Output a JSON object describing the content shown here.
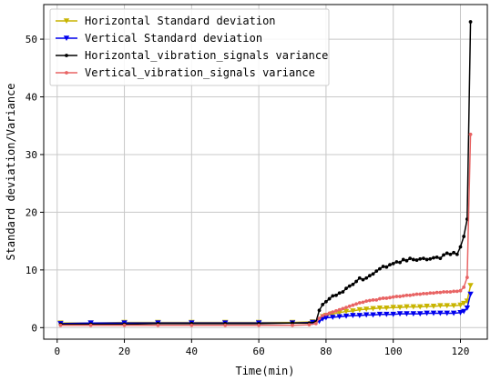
{
  "chart_data": {
    "type": "line",
    "xlabel": "Time(min)",
    "ylabel": "Standard deviation/Variance",
    "xlim": [
      -4,
      128
    ],
    "ylim": [
      -2,
      56
    ],
    "xticks": [
      0,
      20,
      40,
      60,
      80,
      100,
      120
    ],
    "yticks": [
      0,
      10,
      20,
      30,
      40,
      50
    ],
    "grid": true,
    "legend_position": "top-left",
    "series": [
      {
        "name": "Horizontal Standard deviation",
        "color": "#c8b400",
        "marker": "triangle-down",
        "x": [
          1,
          10,
          20,
          30,
          40,
          50,
          60,
          70,
          76,
          78,
          79,
          80,
          82,
          84,
          86,
          88,
          90,
          92,
          94,
          96,
          98,
          100,
          102,
          104,
          106,
          108,
          110,
          112,
          114,
          116,
          118,
          120,
          121,
          122,
          123
        ],
        "y": [
          0.8,
          0.8,
          0.9,
          0.9,
          0.9,
          0.9,
          0.9,
          0.9,
          1.0,
          1.2,
          1.9,
          2.1,
          2.4,
          2.6,
          2.8,
          2.9,
          3.1,
          3.2,
          3.3,
          3.4,
          3.4,
          3.5,
          3.5,
          3.6,
          3.6,
          3.6,
          3.7,
          3.7,
          3.8,
          3.8,
          3.8,
          3.9,
          4.2,
          4.6,
          7.3
        ]
      },
      {
        "name": "Vertical Standard deviation",
        "color": "#0000ee",
        "marker": "triangle-down",
        "x": [
          1,
          10,
          20,
          30,
          40,
          50,
          60,
          70,
          76,
          78,
          79,
          80,
          82,
          84,
          86,
          88,
          90,
          92,
          94,
          96,
          98,
          100,
          102,
          104,
          106,
          108,
          110,
          112,
          114,
          116,
          118,
          120,
          121,
          122,
          123
        ],
        "y": [
          0.7,
          0.8,
          0.8,
          0.8,
          0.8,
          0.8,
          0.8,
          0.8,
          0.9,
          1.1,
          1.5,
          1.7,
          1.8,
          1.9,
          2.0,
          2.1,
          2.1,
          2.2,
          2.2,
          2.3,
          2.3,
          2.3,
          2.4,
          2.4,
          2.4,
          2.4,
          2.5,
          2.5,
          2.5,
          2.5,
          2.5,
          2.6,
          2.8,
          3.4,
          5.8
        ]
      },
      {
        "name": "Horizontal_vibration_signals variance",
        "color": "#000000",
        "marker": "dot",
        "x": [
          1,
          10,
          20,
          30,
          40,
          50,
          60,
          70,
          75,
          77,
          78,
          79,
          80,
          81,
          82,
          83,
          84,
          85,
          86,
          87,
          88,
          89,
          90,
          91,
          92,
          93,
          94,
          95,
          96,
          97,
          98,
          99,
          100,
          101,
          102,
          103,
          104,
          105,
          106,
          107,
          108,
          109,
          110,
          111,
          112,
          113,
          114,
          115,
          116,
          117,
          118,
          119,
          120,
          121,
          122,
          123
        ],
        "y": [
          0.6,
          0.6,
          0.6,
          0.7,
          0.7,
          0.7,
          0.7,
          0.8,
          0.8,
          1.0,
          3.0,
          4.0,
          4.5,
          5.0,
          5.5,
          5.6,
          6.0,
          6.2,
          6.8,
          7.2,
          7.5,
          8.0,
          8.6,
          8.3,
          8.6,
          9.0,
          9.3,
          9.8,
          10.2,
          10.6,
          10.5,
          10.9,
          11.1,
          11.4,
          11.3,
          11.8,
          11.6,
          12.0,
          11.8,
          11.7,
          11.9,
          12.0,
          11.8,
          11.9,
          12.1,
          12.2,
          12.0,
          12.6,
          12.9,
          12.7,
          13.0,
          12.7,
          14.0,
          15.8,
          18.8,
          53.0
        ]
      },
      {
        "name": "Vertical_vibration_signals variance",
        "color": "#e86464",
        "marker": "dot",
        "x": [
          1,
          10,
          20,
          30,
          40,
          50,
          60,
          70,
          75,
          77,
          78,
          79,
          80,
          81,
          82,
          83,
          84,
          85,
          86,
          87,
          88,
          89,
          90,
          91,
          92,
          93,
          94,
          95,
          96,
          97,
          98,
          99,
          100,
          101,
          102,
          103,
          104,
          105,
          106,
          107,
          108,
          109,
          110,
          111,
          112,
          113,
          114,
          115,
          116,
          117,
          118,
          119,
          120,
          121,
          122,
          123
        ],
        "y": [
          0.4,
          0.4,
          0.4,
          0.4,
          0.4,
          0.4,
          0.4,
          0.4,
          0.5,
          0.7,
          1.6,
          2.1,
          2.3,
          2.5,
          2.7,
          2.9,
          3.1,
          3.3,
          3.5,
          3.7,
          3.9,
          4.1,
          4.3,
          4.4,
          4.6,
          4.7,
          4.8,
          4.8,
          5.0,
          5.1,
          5.1,
          5.2,
          5.3,
          5.4,
          5.4,
          5.5,
          5.6,
          5.6,
          5.7,
          5.8,
          5.8,
          5.9,
          5.9,
          6.0,
          6.0,
          6.1,
          6.1,
          6.2,
          6.2,
          6.2,
          6.3,
          6.3,
          6.4,
          7.0,
          8.7,
          33.5
        ]
      }
    ]
  }
}
